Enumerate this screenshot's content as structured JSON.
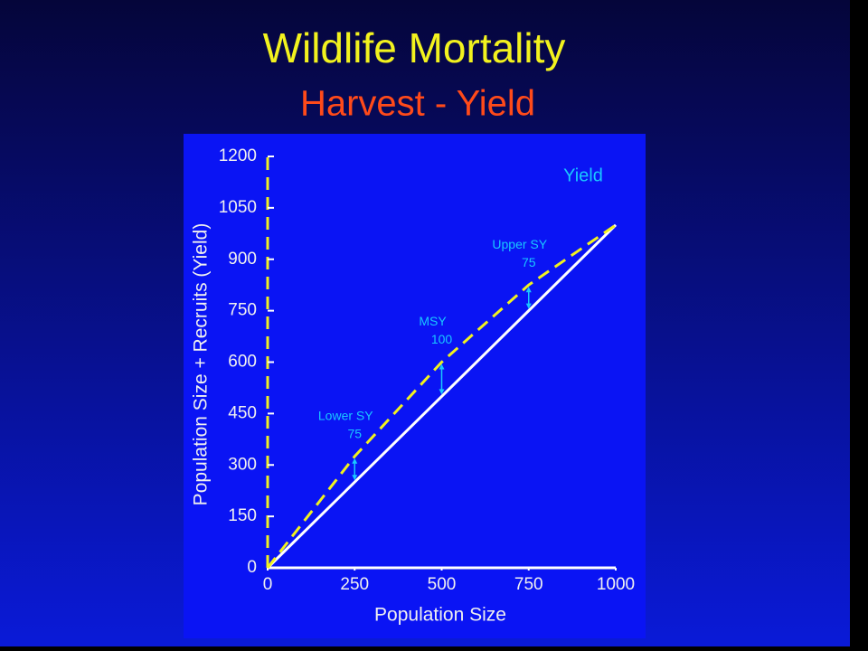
{
  "chart_data": {
    "type": "line",
    "title": "Wildlife Mortality",
    "subtitle": "Harvest - Yield",
    "x_label": "Population Size",
    "y_label": "Population Size + Recruits (Yield)",
    "corner_label": "Yield",
    "x": [
      0,
      250,
      500,
      750,
      1000
    ],
    "series": [
      {
        "color": "#ffffff",
        "dashed": false,
        "values": [
          0,
          250,
          500,
          750,
          1000
        ]
      },
      {
        "color": "#f2f21e",
        "dashed": true,
        "values": [
          0,
          325,
          600,
          825,
          1000
        ]
      }
    ],
    "annotations": [
      {
        "label": "Lower SY",
        "value": 75
      },
      {
        "label": "MSY",
        "value": 100
      },
      {
        "label": "Upper SY",
        "value": 75
      }
    ],
    "xlim": [
      0,
      1000
    ],
    "ylim": [
      0,
      1200
    ],
    "xticks": [
      0,
      250,
      500,
      750,
      1000
    ],
    "yticks": [
      0,
      150,
      300,
      450,
      600,
      750,
      900,
      1050,
      1200
    ],
    "grid": false
  }
}
